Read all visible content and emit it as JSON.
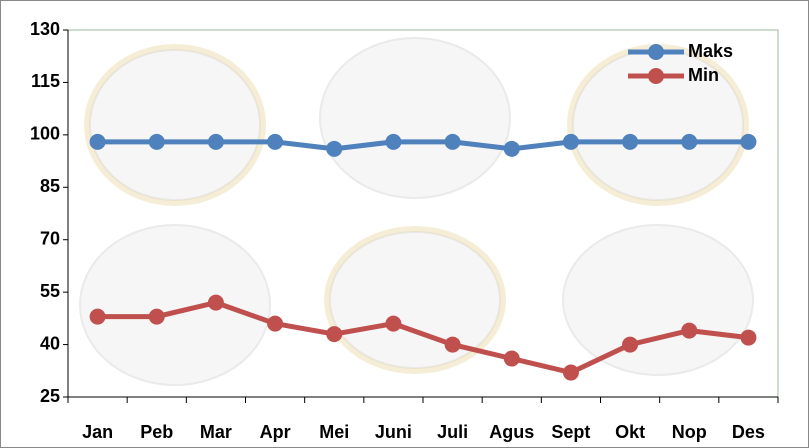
{
  "chart_data": {
    "type": "line",
    "categories": [
      "Jan",
      "Peb",
      "Mar",
      "Apr",
      "Mei",
      "Juni",
      "Juli",
      "Agus",
      "Sept",
      "Okt",
      "Nop",
      "Des"
    ],
    "series": [
      {
        "name": "Maks",
        "color": "#4f81bd",
        "values": [
          98,
          98,
          98,
          98,
          96,
          98,
          98,
          96,
          98,
          98,
          98,
          98
        ]
      },
      {
        "name": "Min",
        "color": "#c0504d",
        "values": [
          48,
          48,
          52,
          46,
          43,
          46,
          40,
          36,
          32,
          40,
          44,
          42
        ]
      }
    ],
    "ylim": [
      25,
      130
    ],
    "yticks": [
      25,
      40,
      55,
      70,
      85,
      100,
      115,
      130
    ],
    "legend": "top-right",
    "grid": false
  }
}
